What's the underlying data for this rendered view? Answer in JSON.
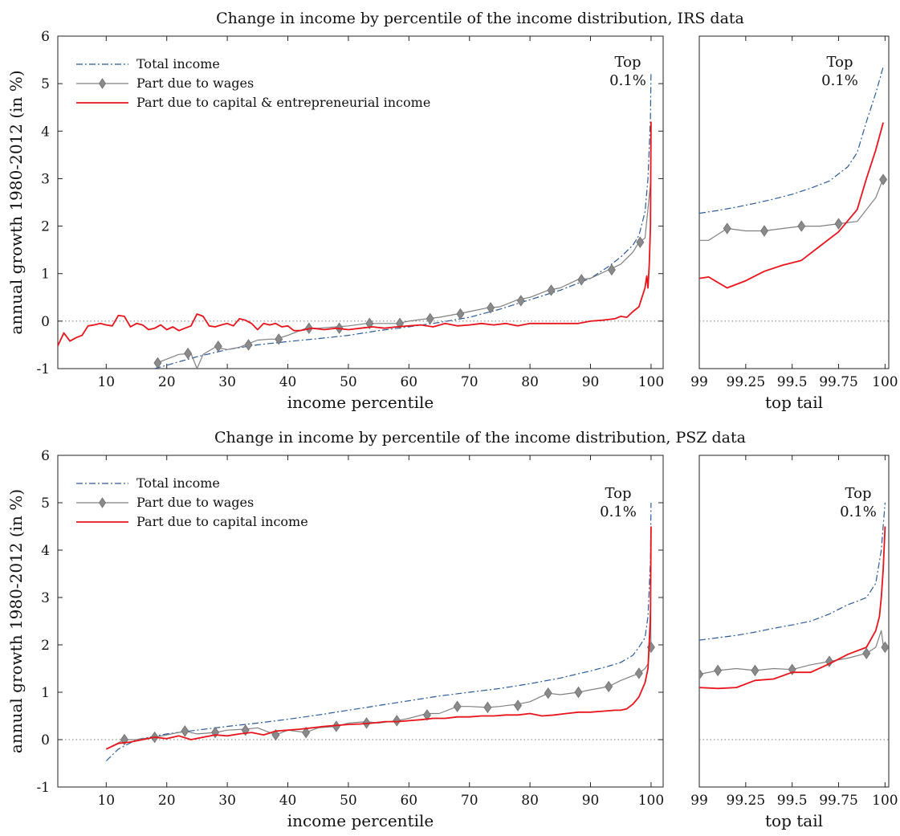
{
  "chart_data": [
    {
      "type": "line",
      "panel": "main",
      "title": "Change in income by percentile of the income distribution, IRS data",
      "xlabel": "income percentile",
      "ylabel": "annual growth 1980-2012 (in %)",
      "xlim": [
        2,
        102
      ],
      "ylim": [
        -1,
        6
      ],
      "xticks": [
        10,
        20,
        30,
        40,
        50,
        60,
        70,
        80,
        90,
        100
      ],
      "yticks": [
        -1,
        0,
        1,
        2,
        3,
        4,
        5,
        6
      ],
      "zero_line": true,
      "grid": false,
      "legend_position": "top-left",
      "annotation": {
        "line1": "Top",
        "line2": "0.1%"
      },
      "series": [
        {
          "name": "Total income",
          "style": "dashdot",
          "color": "#2a5b99",
          "x": [
            18,
            25,
            30,
            35,
            40,
            45,
            50,
            55,
            60,
            65,
            70,
            75,
            80,
            85,
            90,
            93,
            95,
            97,
            98,
            99,
            99.5,
            99.9,
            100
          ],
          "y": [
            -1.0,
            -0.75,
            -0.6,
            -0.5,
            -0.43,
            -0.37,
            -0.3,
            -0.2,
            -0.12,
            -0.03,
            0.08,
            0.25,
            0.45,
            0.65,
            0.9,
            1.15,
            1.35,
            1.6,
            1.8,
            2.3,
            3.0,
            4.3,
            5.25
          ]
        },
        {
          "name": "Part due to wages",
          "style": "solid",
          "color": "#808080",
          "marker": "diamond",
          "x": [
            18,
            20,
            22,
            24,
            25,
            26,
            28,
            30,
            32,
            33,
            35,
            37,
            38,
            40,
            42,
            43,
            45,
            48,
            50,
            53,
            55,
            58,
            60,
            63,
            65,
            68,
            70,
            73,
            75,
            78,
            80,
            83,
            85,
            88,
            90,
            93,
            95,
            97,
            98,
            99,
            100
          ],
          "y": [
            -0.9,
            -0.8,
            -0.7,
            -0.68,
            -1.0,
            -0.7,
            -0.55,
            -0.6,
            -0.55,
            -0.5,
            -0.4,
            -0.38,
            -0.38,
            -0.3,
            -0.2,
            -0.15,
            -0.15,
            -0.12,
            -0.1,
            -0.05,
            -0.05,
            -0.05,
            0.0,
            0.05,
            0.08,
            0.15,
            0.2,
            0.28,
            0.3,
            0.45,
            0.5,
            0.65,
            0.7,
            0.88,
            0.9,
            1.08,
            1.2,
            1.45,
            1.66,
            1.75,
            3.0
          ],
          "marker_x": [
            18.5,
            23.5,
            28.5,
            33.5,
            38.5,
            43.5,
            48.5,
            53.5,
            58.5,
            63.5,
            68.5,
            73.5,
            78.5,
            83.5,
            88.5,
            93.5,
            98.2
          ],
          "marker_y": [
            -0.88,
            -0.68,
            -0.53,
            -0.5,
            -0.38,
            -0.15,
            -0.15,
            -0.05,
            -0.05,
            0.05,
            0.15,
            0.28,
            0.43,
            0.65,
            0.87,
            1.08,
            1.66
          ]
        },
        {
          "name": "Part due to capital & entrepreneurial income",
          "style": "solid",
          "color": "#e8141c",
          "x": [
            2,
            3,
            4,
            5,
            6,
            7,
            8,
            9,
            10,
            11,
            12,
            13,
            14,
            15,
            16,
            17,
            18,
            19,
            20,
            21,
            22,
            23,
            24,
            25,
            26,
            27,
            28,
            29,
            30,
            31,
            32,
            33,
            34,
            35,
            36,
            37,
            38,
            39,
            40,
            41,
            42,
            44,
            46,
            48,
            50,
            52,
            54,
            56,
            58,
            60,
            62,
            64,
            66,
            68,
            70,
            72,
            74,
            76,
            78,
            80,
            82,
            84,
            86,
            88,
            90,
            92,
            94,
            95,
            96,
            97,
            98,
            98.5,
            99,
            99.3,
            99.5,
            99.7,
            99.9,
            100
          ],
          "y": [
            -0.52,
            -0.25,
            -0.42,
            -0.35,
            -0.3,
            -0.1,
            -0.08,
            -0.05,
            -0.08,
            -0.1,
            0.12,
            0.1,
            -0.12,
            -0.05,
            -0.08,
            -0.18,
            -0.15,
            -0.08,
            -0.18,
            -0.12,
            -0.2,
            -0.15,
            -0.1,
            0.15,
            0.1,
            -0.1,
            -0.12,
            -0.08,
            -0.05,
            -0.1,
            0.05,
            0.02,
            -0.05,
            -0.18,
            -0.05,
            -0.08,
            -0.05,
            -0.12,
            -0.1,
            -0.2,
            -0.2,
            -0.15,
            -0.18,
            -0.15,
            -0.18,
            -0.15,
            -0.12,
            -0.15,
            -0.12,
            -0.1,
            -0.08,
            -0.12,
            -0.05,
            -0.1,
            -0.08,
            -0.05,
            -0.08,
            -0.05,
            -0.1,
            -0.05,
            -0.05,
            -0.05,
            -0.05,
            -0.05,
            0.0,
            0.02,
            0.05,
            0.1,
            0.08,
            0.2,
            0.3,
            0.5,
            0.7,
            0.95,
            0.7,
            1.2,
            2.0,
            4.2
          ]
        }
      ]
    },
    {
      "type": "line",
      "panel": "top-tail",
      "xlabel": "top tail",
      "xlim": [
        99,
        100.02
      ],
      "ylim": [
        -1,
        6
      ],
      "xticks": [
        99,
        99.25,
        99.5,
        99.75,
        100
      ],
      "xtick_labels": [
        "99",
        "99.25",
        "99.5",
        "99.75",
        "100"
      ],
      "zero_line": true,
      "annotation": {
        "line1": "Top",
        "line2": "0.1%"
      },
      "series": [
        {
          "name": "Total income",
          "style": "dashdot",
          "color": "#2a5b99",
          "x": [
            99,
            99.1,
            99.2,
            99.3,
            99.4,
            99.5,
            99.6,
            99.7,
            99.75,
            99.8,
            99.85,
            99.9,
            99.95,
            99.99
          ],
          "y": [
            2.27,
            2.33,
            2.4,
            2.48,
            2.57,
            2.67,
            2.8,
            2.95,
            3.1,
            3.25,
            3.55,
            4.2,
            4.8,
            5.35
          ]
        },
        {
          "name": "Part due to wages",
          "style": "solid",
          "color": "#808080",
          "marker": "diamond",
          "x": [
            99,
            99.05,
            99.15,
            99.25,
            99.35,
            99.45,
            99.55,
            99.65,
            99.75,
            99.85,
            99.95,
            99.99
          ],
          "y": [
            1.7,
            1.7,
            1.95,
            1.9,
            1.9,
            1.95,
            2.0,
            2.0,
            2.05,
            2.1,
            2.6,
            3.0
          ],
          "marker_x": [
            99.15,
            99.35,
            99.55,
            99.75,
            99.99
          ],
          "marker_y": [
            1.95,
            1.9,
            2.0,
            2.05,
            2.98
          ]
        },
        {
          "name": "Part due to capital & entrepreneurial income",
          "style": "solid",
          "color": "#e8141c",
          "x": [
            99,
            99.05,
            99.15,
            99.25,
            99.35,
            99.45,
            99.55,
            99.65,
            99.75,
            99.85,
            99.9,
            99.95,
            99.99
          ],
          "y": [
            0.9,
            0.93,
            0.7,
            0.85,
            1.05,
            1.18,
            1.28,
            1.58,
            1.88,
            2.35,
            3.0,
            3.6,
            4.18
          ]
        }
      ]
    },
    {
      "type": "line",
      "panel": "main",
      "title": "Change in income by percentile of the income distribution, PSZ data",
      "xlabel": "income percentile",
      "ylabel": "annual growth 1980-2012 (in %)",
      "xlim": [
        2,
        102
      ],
      "ylim": [
        -1,
        6
      ],
      "xticks": [
        10,
        20,
        30,
        40,
        50,
        60,
        70,
        80,
        90,
        100
      ],
      "yticks": [
        -1,
        0,
        1,
        2,
        3,
        4,
        5,
        6
      ],
      "zero_line": true,
      "grid": false,
      "legend_position": "top-left",
      "annotation": {
        "line1": "Top",
        "line2": "0.1%"
      },
      "series": [
        {
          "name": "Total income",
          "style": "dashdot",
          "color": "#2a5b99",
          "x": [
            10,
            12,
            15,
            20,
            25,
            30,
            35,
            40,
            45,
            50,
            55,
            60,
            65,
            70,
            75,
            80,
            85,
            90,
            93,
            95,
            97,
            98,
            99,
            99.5,
            99.9,
            100
          ],
          "y": [
            -0.45,
            -0.2,
            0.0,
            0.12,
            0.2,
            0.28,
            0.35,
            0.43,
            0.52,
            0.62,
            0.72,
            0.82,
            0.92,
            1.0,
            1.08,
            1.18,
            1.3,
            1.45,
            1.55,
            1.63,
            1.78,
            1.95,
            2.15,
            2.6,
            3.8,
            5.0
          ]
        },
        {
          "name": "Part due to wages",
          "style": "solid",
          "color": "#808080",
          "marker": "diamond",
          "x": [
            10,
            13,
            15,
            18,
            20,
            23,
            25,
            28,
            30,
            33,
            35,
            38,
            40,
            43,
            45,
            48,
            50,
            53,
            55,
            58,
            60,
            63,
            65,
            68,
            70,
            73,
            75,
            78,
            80,
            83,
            85,
            88,
            90,
            93,
            95,
            98,
            99,
            99.5,
            99.9,
            100
          ],
          "y": [
            -0.2,
            0.0,
            0.0,
            0.05,
            0.1,
            0.18,
            0.12,
            0.15,
            0.2,
            0.22,
            0.25,
            0.1,
            0.2,
            0.15,
            0.25,
            0.28,
            0.35,
            0.38,
            0.35,
            0.4,
            0.45,
            0.55,
            0.55,
            0.7,
            0.7,
            0.68,
            0.7,
            0.75,
            0.8,
            0.98,
            0.95,
            1.0,
            1.05,
            1.12,
            1.25,
            1.4,
            1.5,
            1.6,
            2.8,
            1.95
          ],
          "marker_x": [
            13,
            18,
            23,
            28,
            33,
            38,
            43,
            48,
            53,
            58,
            63,
            68,
            73,
            78,
            83,
            88,
            93,
            98,
            100
          ],
          "marker_y": [
            0.0,
            0.05,
            0.18,
            0.15,
            0.2,
            0.1,
            0.15,
            0.28,
            0.35,
            0.4,
            0.52,
            0.7,
            0.68,
            0.72,
            0.98,
            1.0,
            1.12,
            1.4,
            1.95
          ]
        },
        {
          "name": "Part due to capital income",
          "style": "solid",
          "color": "#e8141c",
          "x": [
            10,
            12,
            14,
            16,
            18,
            20,
            22,
            24,
            26,
            28,
            30,
            32,
            34,
            36,
            38,
            40,
            42,
            44,
            46,
            48,
            50,
            52,
            54,
            56,
            58,
            60,
            62,
            64,
            66,
            68,
            70,
            72,
            74,
            76,
            78,
            80,
            82,
            84,
            86,
            88,
            90,
            92,
            94,
            95,
            96,
            97,
            98,
            98.5,
            99,
            99.5,
            99.9,
            100
          ],
          "y": [
            -0.2,
            -0.08,
            -0.05,
            0.0,
            0.05,
            0.02,
            0.08,
            0.0,
            0.05,
            0.1,
            0.08,
            0.12,
            0.15,
            0.1,
            0.18,
            0.2,
            0.22,
            0.25,
            0.28,
            0.3,
            0.32,
            0.33,
            0.35,
            0.38,
            0.38,
            0.4,
            0.42,
            0.45,
            0.45,
            0.48,
            0.48,
            0.5,
            0.5,
            0.52,
            0.52,
            0.55,
            0.5,
            0.52,
            0.55,
            0.58,
            0.58,
            0.6,
            0.62,
            0.62,
            0.65,
            0.75,
            0.9,
            1.05,
            1.2,
            1.5,
            2.5,
            4.5
          ]
        }
      ]
    },
    {
      "type": "line",
      "panel": "top-tail",
      "xlabel": "top tail",
      "xlim": [
        99,
        100.02
      ],
      "ylim": [
        -1,
        6
      ],
      "xticks": [
        99,
        99.25,
        99.5,
        99.75,
        100
      ],
      "xtick_labels": [
        "99",
        "99.25",
        "99.5",
        "99.75",
        "100"
      ],
      "zero_line": true,
      "annotation": {
        "line1": "Top",
        "line2": "0.1%"
      },
      "series": [
        {
          "name": "Total income",
          "style": "dashdot",
          "color": "#2a5b99",
          "x": [
            99,
            99.1,
            99.2,
            99.3,
            99.4,
            99.5,
            99.6,
            99.7,
            99.8,
            99.85,
            99.9,
            99.95,
            99.98,
            100
          ],
          "y": [
            2.1,
            2.15,
            2.2,
            2.27,
            2.35,
            2.42,
            2.5,
            2.65,
            2.85,
            2.92,
            3.0,
            3.3,
            4.0,
            5.0
          ]
        },
        {
          "name": "Part due to wages",
          "style": "solid",
          "color": "#808080",
          "marker": "diamond",
          "x": [
            99,
            99.1,
            99.2,
            99.3,
            99.4,
            99.5,
            99.6,
            99.7,
            99.8,
            99.9,
            99.95,
            99.98,
            99.99,
            100
          ],
          "y": [
            1.38,
            1.46,
            1.5,
            1.46,
            1.5,
            1.48,
            1.58,
            1.65,
            1.72,
            1.82,
            1.95,
            2.3,
            2.0,
            1.95
          ],
          "marker_x": [
            99,
            99.1,
            99.3,
            99.5,
            99.7,
            99.9,
            100
          ],
          "marker_y": [
            1.38,
            1.46,
            1.46,
            1.48,
            1.65,
            1.82,
            1.95
          ]
        },
        {
          "name": "Part due to capital income",
          "style": "solid",
          "color": "#e8141c",
          "x": [
            99,
            99.1,
            99.2,
            99.3,
            99.4,
            99.5,
            99.6,
            99.7,
            99.8,
            99.9,
            99.95,
            99.97,
            99.98,
            99.99,
            100
          ],
          "y": [
            1.1,
            1.08,
            1.1,
            1.25,
            1.28,
            1.42,
            1.42,
            1.6,
            1.8,
            1.95,
            2.3,
            2.6,
            3.0,
            3.6,
            4.5
          ]
        }
      ]
    }
  ]
}
